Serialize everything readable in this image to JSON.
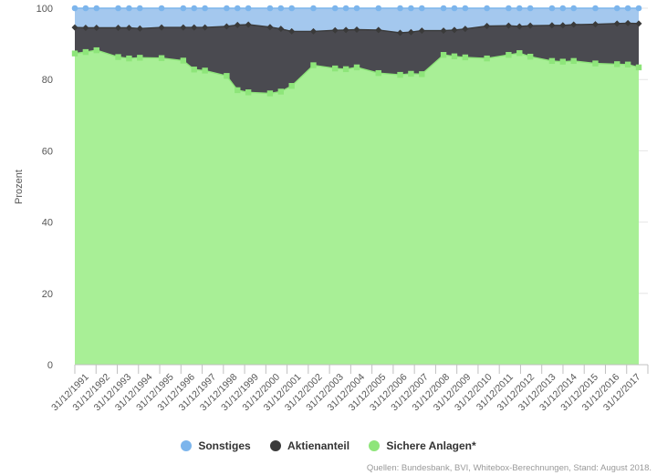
{
  "chart_data": {
    "type": "area",
    "stacked": true,
    "ylabel": "Prozent",
    "ylim": [
      0,
      100
    ],
    "yticks": [
      0,
      20,
      40,
      60,
      80,
      100
    ],
    "categories": [
      "31/12/1991",
      "31/12/1992",
      "31/12/1993",
      "31/12/1994",
      "31/12/1995",
      "31/12/1996",
      "31/12/1997",
      "31/12/1998",
      "31/12/1999",
      "31/12/2000",
      "31/12/2001",
      "31/12/2002",
      "31/12/2003",
      "31/12/2004",
      "31/12/2005",
      "31/12/2006",
      "31/12/2007",
      "31/12/2008",
      "31/12/2009",
      "31/12/2010",
      "31/12/2011",
      "31/12/2012",
      "31/12/2013",
      "31/12/2014",
      "31/12/2015",
      "31/12/2016",
      "31/12/2017"
    ],
    "x_tick_labels": [
      "31/12/1991",
      "31/12/1992",
      "31/12/1993",
      "31/12/1994",
      "31/12/1995",
      "31/12/1996",
      "31/12/1997",
      "31/12/1998",
      "31/12/1999",
      "31/12/2000",
      "31/12/2001",
      "31/12/2002",
      "31/12/2003",
      "31/12/2004",
      "31/12/2005",
      "31/12/2006",
      "31/12/2007",
      "31/12/2008",
      "31/12/2009",
      "31/12/2010",
      "31/12/2011",
      "31/12/2012",
      "31/12/2013",
      "31/12/2014",
      "31/12/2015",
      "31/12/2016",
      "31/12/2017"
    ],
    "x": [
      1991.0,
      1991.5,
      1992.0,
      1993.0,
      1993.5,
      1994.0,
      1995.0,
      1996.0,
      1996.5,
      1997.0,
      1998.0,
      1998.5,
      1999.0,
      2000.0,
      2000.5,
      2001.0,
      2002.0,
      2003.0,
      2003.5,
      2004.0,
      2005.0,
      2006.0,
      2006.5,
      2007.0,
      2008.0,
      2008.5,
      2009.0,
      2010.0,
      2011.0,
      2011.5,
      2012.0,
      2013.0,
      2013.5,
      2014.0,
      2015.0,
      2016.0,
      2016.5,
      2017.0
    ],
    "series": [
      {
        "name": "Sichere Anlagen*",
        "color": "#a8ef96",
        "marker_color": "#8ee57a",
        "values": [
          87.3,
          87.7,
          88.2,
          86.3,
          85.9,
          86.1,
          86.0,
          85.3,
          82.8,
          82.5,
          81.0,
          77.0,
          76.4,
          76.1,
          76.6,
          78.2,
          84.0,
          83.1,
          82.9,
          83.4,
          81.8,
          81.3,
          81.6,
          81.5,
          86.9,
          86.5,
          86.2,
          85.9,
          86.9,
          87.4,
          86.4,
          85.2,
          85.0,
          85.2,
          84.5,
          84.3,
          84.2,
          83.4
        ]
      },
      {
        "name": "Aktienanteil",
        "color": "#4a4a50",
        "marker_color": "#3a3a3a",
        "values": [
          7.3,
          6.8,
          6.3,
          8.2,
          8.6,
          8.2,
          8.6,
          9.3,
          11.8,
          12.1,
          13.9,
          18.3,
          19.0,
          18.6,
          17.6,
          15.3,
          9.5,
          10.7,
          11.0,
          10.6,
          12.1,
          11.8,
          11.7,
          12.2,
          6.8,
          7.4,
          8.0,
          9.1,
          8.2,
          7.5,
          8.7,
          10.0,
          10.2,
          10.2,
          11.0,
          11.4,
          11.6,
          12.3
        ]
      },
      {
        "name": "Sonstiges",
        "color": "#a4c8ee",
        "marker_color": "#7cb5ec",
        "values": [
          5.4,
          5.5,
          5.5,
          5.5,
          5.5,
          5.7,
          5.4,
          5.4,
          5.4,
          5.4,
          5.1,
          4.7,
          4.6,
          5.3,
          5.8,
          6.5,
          6.5,
          6.2,
          6.1,
          6.0,
          6.1,
          6.9,
          6.7,
          6.3,
          6.3,
          6.1,
          5.8,
          5.0,
          4.9,
          5.1,
          4.9,
          4.8,
          4.8,
          4.6,
          4.5,
          4.3,
          4.2,
          4.3
        ]
      }
    ],
    "legend": [
      "Sonstiges",
      "Aktienanteil",
      "Sichere Anlagen*"
    ],
    "legend_position": "bottom"
  },
  "legend_items": [
    {
      "label": "Sonstiges",
      "color": "#7cb5ec"
    },
    {
      "label": "Aktienanteil",
      "color": "#3a3a3a"
    },
    {
      "label": "Sichere Anlagen*",
      "color": "#8ee57a"
    }
  ],
  "source_text": "Quellen: Bundesbank, BVI, Whitebox-Berechnungen, Stand: August 2018."
}
